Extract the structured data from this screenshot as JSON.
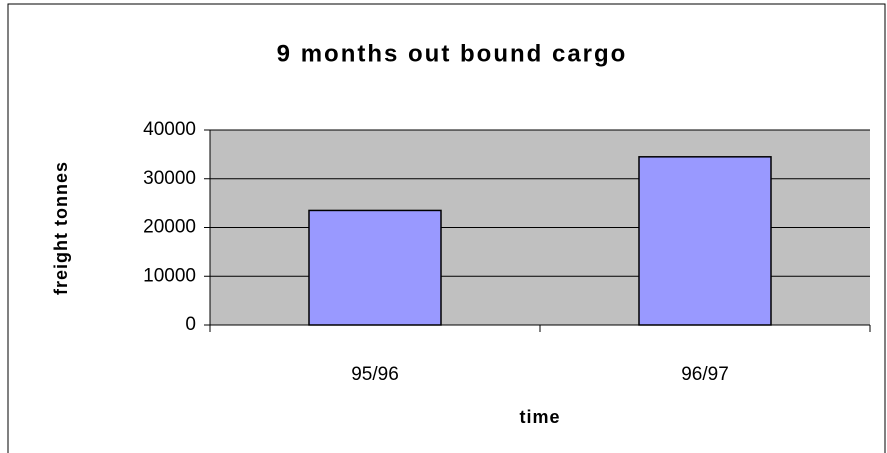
{
  "chart_data": {
    "type": "bar",
    "title": "9 months out bound cargo",
    "x_label": "time",
    "y_label": "freight tonnes",
    "categories": [
      "95/96",
      "96/97"
    ],
    "values": [
      23500,
      34500
    ],
    "color": "#9999ff",
    "ylim": [
      0,
      40000
    ],
    "yticks": [
      0,
      10000,
      20000,
      30000,
      40000
    ],
    "grid": true
  }
}
